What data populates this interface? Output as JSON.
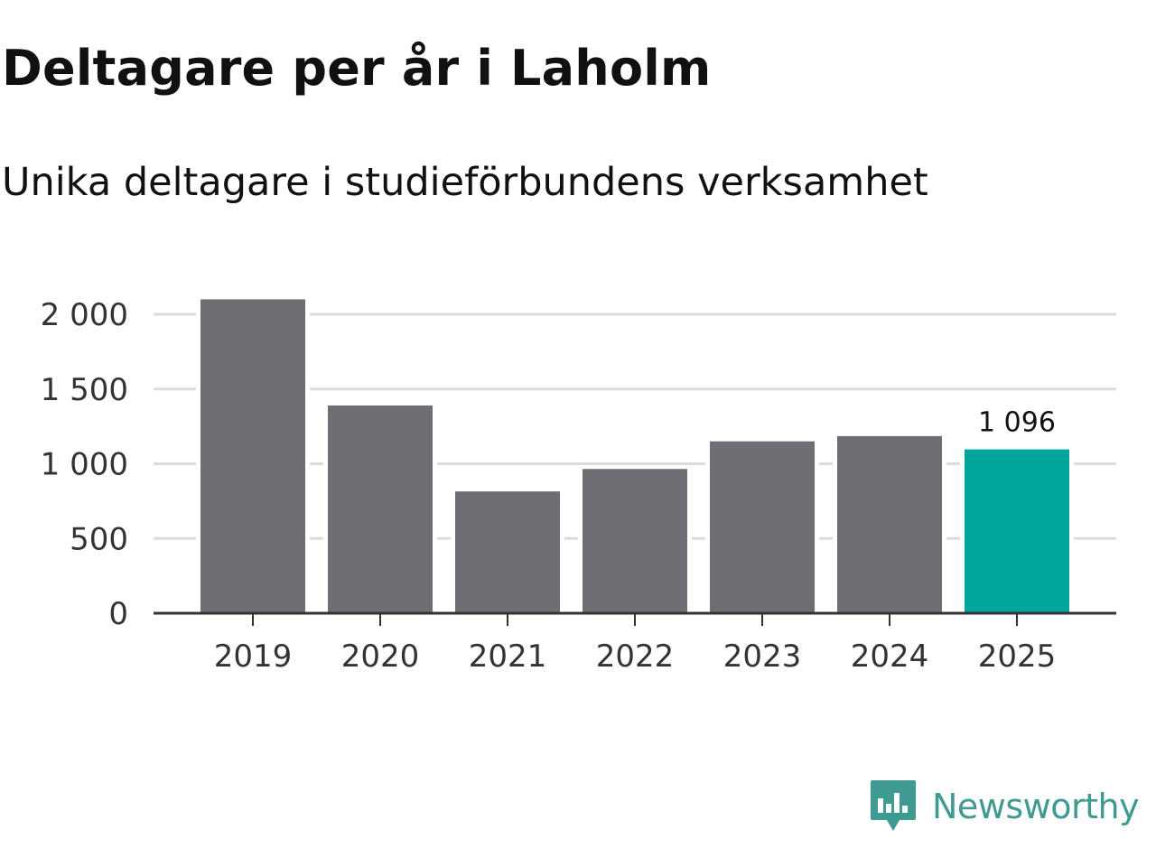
{
  "chart_data": {
    "type": "bar",
    "title": "Deltagare per år i Laholm",
    "subtitle": "Unika deltagare i studieförbundens verksamhet",
    "categories": [
      "2019",
      "2020",
      "2021",
      "2022",
      "2023",
      "2024",
      "2025"
    ],
    "values": [
      2100,
      1390,
      815,
      965,
      1150,
      1185,
      1096
    ],
    "ylim": [
      0,
      2000
    ],
    "yticks": [
      0,
      500,
      1000,
      1500,
      2000
    ],
    "ytick_labels": [
      "0",
      "500",
      "1 000",
      "1 500",
      "2 000"
    ],
    "xlabel": "",
    "ylabel": "",
    "grid": true,
    "annotations": [
      {
        "category": "2025",
        "text": "1 096"
      }
    ],
    "colors": {
      "bar": "#6f6e75",
      "highlight": "#00a59c",
      "grid": "#dcdcdc",
      "axis": "#333333",
      "text": "#333333"
    },
    "highlight_category": "2025"
  },
  "branding": {
    "name": "Newsworthy",
    "logo_icon": "newsworthy-logo-icon",
    "color": "#3f9a92"
  }
}
